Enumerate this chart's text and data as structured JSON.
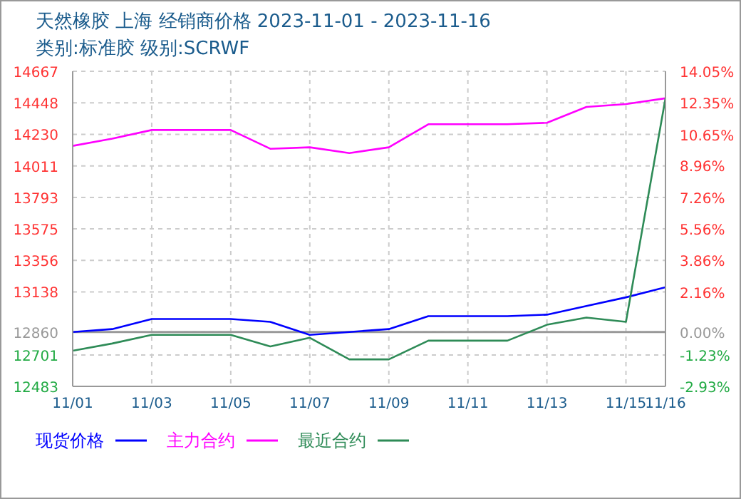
{
  "chart_data": {
    "type": "line",
    "title": "天然橡胶 上海 经销商价格 2023-11-01 - 2023-11-16",
    "subtitle": "类别:标准胶 级别:SCRWF",
    "x": [
      "2023-11-01",
      "2023-11-02",
      "2023-11-03",
      "2023-11-04",
      "2023-11-05",
      "2023-11-06",
      "2023-11-07",
      "2023-11-08",
      "2023-11-09",
      "2023-11-10",
      "2023-11-11",
      "2023-11-12",
      "2023-11-13",
      "2023-11-14",
      "2023-11-15",
      "2023-11-16"
    ],
    "series": [
      {
        "name": "现货价格",
        "color": "#0000ff",
        "values": [
          12860,
          12880,
          12950,
          12950,
          12950,
          12930,
          12840,
          12860,
          12880,
          12970,
          12970,
          12970,
          12980,
          13040,
          13100,
          13170
        ]
      },
      {
        "name": "主力合约",
        "color": "#ff00ff",
        "values": [
          14150,
          14200,
          14260,
          14260,
          14260,
          14130,
          14140,
          14100,
          14140,
          14300,
          14300,
          14300,
          14310,
          14420,
          14440,
          14480
        ]
      },
      {
        "name": "最近合约",
        "color": "#2e8b57",
        "values": [
          12730,
          12780,
          12840,
          12840,
          12840,
          12760,
          12820,
          12670,
          12670,
          12800,
          12800,
          12800,
          12910,
          12960,
          12930,
          14480
        ]
      }
    ],
    "xlim": [
      "2023-11-01",
      "2023-11-16"
    ],
    "xticks": [
      {
        "value": "2023-11-01",
        "label": "11/01"
      },
      {
        "value": "2023-11-03",
        "label": "11/03"
      },
      {
        "value": "2023-11-05",
        "label": "11/05"
      },
      {
        "value": "2023-11-07",
        "label": "11/07"
      },
      {
        "value": "2023-11-09",
        "label": "11/09"
      },
      {
        "value": "2023-11-11",
        "label": "11/11"
      },
      {
        "value": "2023-11-13",
        "label": "11/13"
      },
      {
        "value": "2023-11-15",
        "label": "11/15"
      },
      {
        "value": "2023-11-16",
        "label": "11/16"
      }
    ],
    "ylim": [
      12483,
      14667
    ],
    "yticks": [
      12483,
      12701,
      12860,
      13138,
      13356,
      13575,
      13793,
      14011,
      14230,
      14448,
      14667
    ],
    "y2lim": [
      -2.93,
      14.05
    ],
    "y2ticks": [
      {
        "value": -2.93,
        "label": "-2.93%"
      },
      {
        "value": -1.23,
        "label": "-1.23%"
      },
      {
        "value": 0,
        "label": "0.00%"
      },
      {
        "value": 2.16,
        "label": "2.16%"
      },
      {
        "value": 3.86,
        "label": "3.86%"
      },
      {
        "value": 5.56,
        "label": "5.56%"
      },
      {
        "value": 7.26,
        "label": "7.26%"
      },
      {
        "value": 8.96,
        "label": "8.96%"
      },
      {
        "value": 10.65,
        "label": "10.65%"
      },
      {
        "value": 12.35,
        "label": "12.35%"
      },
      {
        "value": 14.05,
        "label": "14.05%"
      }
    ],
    "ref_lines": [
      {
        "axis": "y2",
        "value": 0,
        "color": "#999999",
        "line_style": "solid"
      }
    ],
    "grid": true,
    "legend": "bottom",
    "marker": "none",
    "line_style": "solid"
  }
}
